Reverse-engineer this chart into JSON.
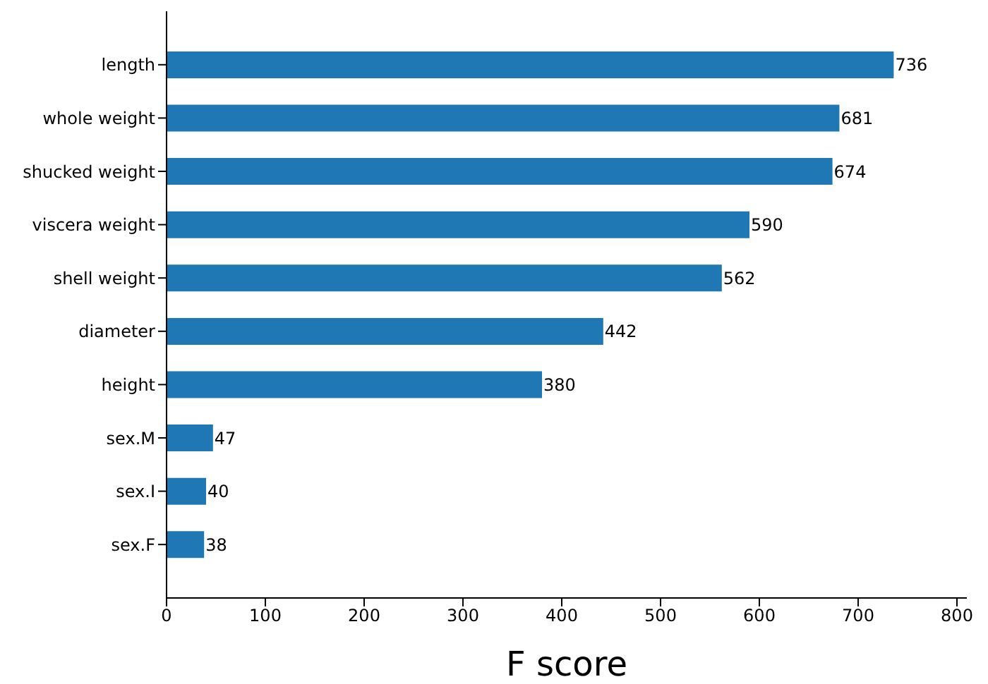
{
  "chart_data": {
    "type": "bar",
    "orientation": "horizontal",
    "xlabel": "F score",
    "categories": [
      "length",
      "whole weight",
      "shucked weight",
      "viscera weight",
      "shell weight",
      "diameter",
      "height",
      "sex.M",
      "sex.I",
      "sex.F"
    ],
    "values": [
      736,
      681,
      674,
      590,
      562,
      442,
      380,
      47,
      40,
      38
    ],
    "color": "#1f77b4",
    "xlim": [
      0,
      810
    ],
    "xticks": [
      0,
      100,
      200,
      300,
      400,
      500,
      600,
      700,
      800
    ],
    "data_labels": true
  }
}
